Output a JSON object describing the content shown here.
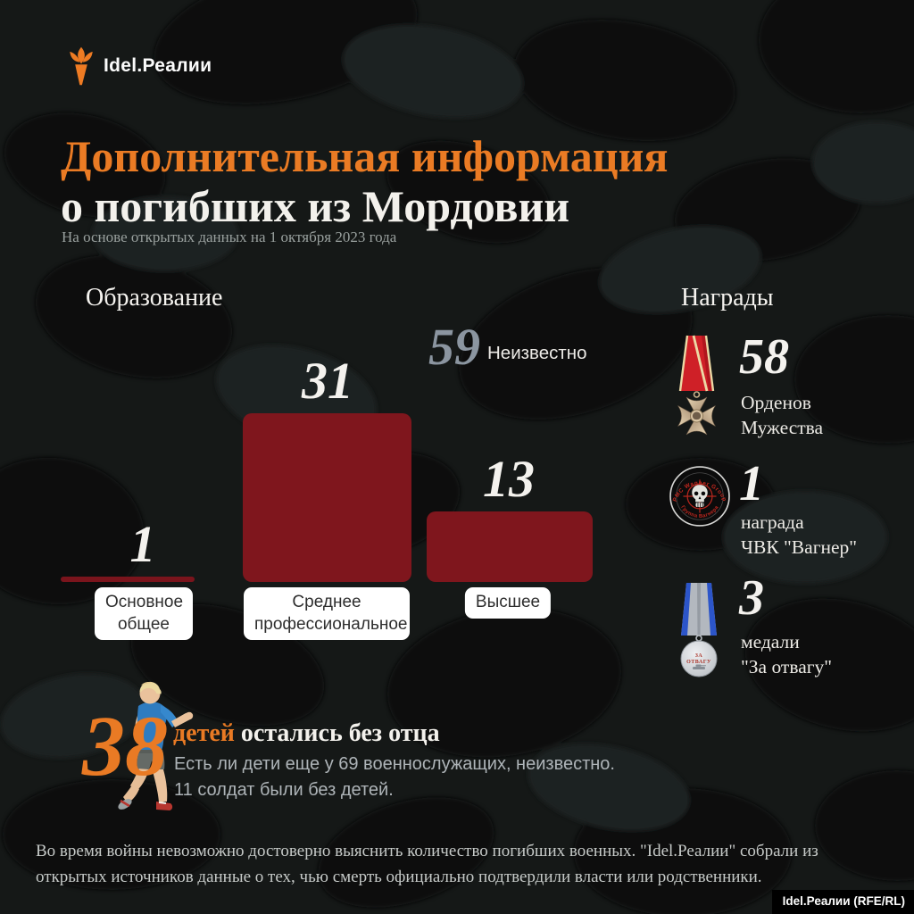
{
  "page": {
    "brand": "Idel.Реалии",
    "title_line1": "Дополнительная информация",
    "title_line2": "о погибших из Мордовии",
    "subtitle": "На основе открытых данных на 1 октября 2023 года",
    "footer": "Во время войны невозможно достоверно выяснить количество погибших военных. \"Idel.Реалии\" собрали из открытых источников данные о тех, чью смерть официально подтвердили власти или родственники.",
    "credit": "Idel.Реалии (RFE/RL)"
  },
  "colors": {
    "accent_orange": "#ea7b24",
    "bar_red": "#7f161d",
    "unknown_gray": "#8b95a0",
    "background": "#151817"
  },
  "education": {
    "heading": "Образование",
    "unknown_value": "59",
    "unknown_label": "Неизвестно"
  },
  "chart_data": {
    "type": "bar",
    "title": "Образование",
    "categories": [
      "Основное общее",
      "Среднее профессиональное",
      "Высшее"
    ],
    "values": [
      1,
      31,
      13
    ],
    "annotations": [
      {
        "label": "Неизвестно",
        "value": 59
      }
    ],
    "bar_color": "#7f161d",
    "ylim": [
      0,
      31
    ],
    "grid": false,
    "legend": false
  },
  "awards": {
    "heading": "Награды",
    "items": [
      {
        "icon": "order-of-courage-medal",
        "value": "58",
        "label_line1": "Орденов",
        "label_line2": "Мужества"
      },
      {
        "icon": "wagner-group-patch",
        "value": "1",
        "label_line1": "награда",
        "label_line2": "ЧВК \"Вагнер\""
      },
      {
        "icon": "za-otvagu-medal",
        "value": "3",
        "label_line1": "медали",
        "label_line2": "\"За отвагу\""
      }
    ]
  },
  "children": {
    "value": "38",
    "label_highlight": "детей",
    "label_rest": " остались без отца",
    "note_line1": "Есть ли дети еще у 69 военнослужащих, неизвестно.",
    "note_line2": "11 солдат были без детей."
  }
}
